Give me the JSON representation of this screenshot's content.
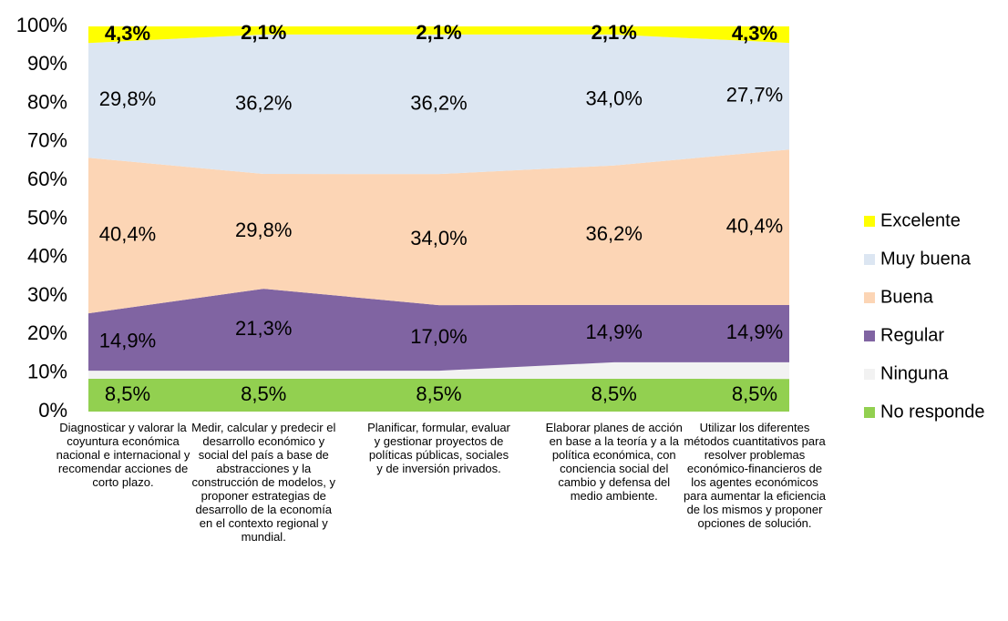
{
  "chart_data": {
    "type": "area",
    "stacked": true,
    "categories": [
      "Diagnosticar y valorar la coyuntura económica nacional e internacional y recomendar acciones de corto plazo.",
      "Medir, calcular y predecir el desarrollo económico y social del país a base de abstracciones y la construcción de modelos, y proponer estrategias de desarrollo de la economía en el contexto regional y mundial.",
      "Planificar, formular, evaluar y gestionar proyectos de políticas públicas, sociales y de inversión privados.",
      "Elaborar planes de acción en base a la teoría y a la política económica, con conciencia social del cambio y defensa del medio ambiente.",
      "Utilizar los diferentes métodos cuantitativos para resolver problemas económico-financieros de los agentes económicos para aumentar la eficiencia de los mismos y proponer opciones de solución."
    ],
    "series": [
      {
        "name": "No responde",
        "color": "#92d050",
        "values": [
          8.5,
          8.5,
          8.5,
          8.5,
          8.5
        ],
        "value_labels": [
          "8,5%",
          "8,5%",
          "8,5%",
          "8,5%",
          "8,5%"
        ]
      },
      {
        "name": "Ninguna",
        "color": "#f2f2f2",
        "values": [
          2.1,
          2.1,
          2.1,
          4.3,
          4.3
        ]
      },
      {
        "name": "Regular",
        "color": "#8064a2",
        "values": [
          14.9,
          21.3,
          17.0,
          14.9,
          14.9
        ],
        "value_labels": [
          "14,9%",
          "21,3%",
          "17,0%",
          "14,9%",
          "14,9%"
        ]
      },
      {
        "name": "Buena",
        "color": "#fcd5b5",
        "values": [
          40.4,
          29.8,
          34.0,
          36.2,
          40.4
        ],
        "value_labels": [
          "40,4%",
          "29,8%",
          "34,0%",
          "36,2%",
          "40,4%"
        ]
      },
      {
        "name": "Muy buena",
        "color": "#dce6f2",
        "values": [
          29.8,
          36.2,
          36.2,
          34.0,
          27.7
        ],
        "value_labels": [
          "29,8%",
          "36,2%",
          "36,2%",
          "34,0%",
          "27,7%"
        ]
      },
      {
        "name": "Excelente",
        "color": "#ffff00",
        "values": [
          4.3,
          2.1,
          2.1,
          2.1,
          4.3
        ],
        "value_labels": [
          "4,3%",
          "2,1%",
          "2,1%",
          "2,1%",
          "4,3%"
        ],
        "bold_labels": true
      }
    ],
    "ylim": [
      0,
      100
    ],
    "yticks": [
      {
        "value": 0,
        "label": "0%"
      },
      {
        "value": 10,
        "label": "10%"
      },
      {
        "value": 20,
        "label": "20%"
      },
      {
        "value": 30,
        "label": "30%"
      },
      {
        "value": 40,
        "label": "40%"
      },
      {
        "value": 50,
        "label": "50%"
      },
      {
        "value": 60,
        "label": "60%"
      },
      {
        "value": 70,
        "label": "70%"
      },
      {
        "value": 80,
        "label": "80%"
      },
      {
        "value": 90,
        "label": "90%"
      },
      {
        "value": 100,
        "label": "100%"
      }
    ],
    "legend": "right"
  }
}
